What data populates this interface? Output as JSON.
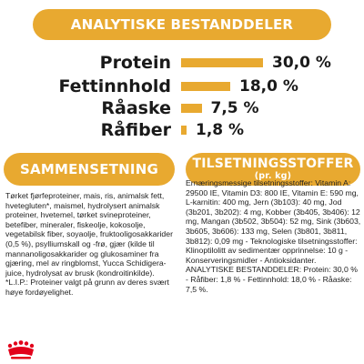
{
  "analytics": {
    "title": "ANALYTISKE BESTANDDELER",
    "rows": [
      {
        "label": "Protein",
        "value": "30,0 %",
        "percent": 30.0
      },
      {
        "label": "Fettinnhold",
        "value": "18,0 %",
        "percent": 18.0
      },
      {
        "label": "Råaske",
        "value": "7,5 %",
        "percent": 7.5
      },
      {
        "label": "Råfiber",
        "value": "1,8 %",
        "percent": 1.8
      }
    ]
  },
  "composition": {
    "title": "SAMMENSETNING",
    "text": "Tørket fjørfeproteiner, mais, ris, animalsk fett, hvetegluten*, maismel, hydrolysert animalsk proteiner, hvetemel, tørket svineproteiner, betefiber, mineraler, fiskeolje, kokosolje, vegetabilsk fiber, soyaolje, fruktooligosakkarider (0,5 %), psylliumskall og -frø, gjær (kilde til mannanoligosakkarider og glukosaminer fra gjæring, mel av ringblomst, Yucca Schidigera-juice, hydrolysat av brusk (kondroitinkilde). *L.I.P.: Proteiner valgt på grunn av deres svært høye fordøyelighet."
  },
  "additives": {
    "title": "TILSETNINGSSTOFFER",
    "subtitle": "(pr. kg)",
    "text": "Ernæringsmessige tilsetningsstoffer: Vitamin A: 29500 IE, Vitamin D3: 800 IE, Vitamin E: 590 mg, L-karnitin: 400 mg, Jern (3b103): 40 mg, Jod (3b201, 3b202): 4 mg, Kobber (3b405, 3b406): 12 mg, Mangan (3b502, 3b504): 52 mg, Sink (3b603, 3b605, 3b606): 133 mg, Selen (3b801, 3b811, 3b812): 0,09 mg - Teknologiske tilsetningsstoffer: Klinoptilolitt av sedimentær opprinnelse: 10 g - Konserveringsmidler - Antioksidanter. ANALYTISKE BESTANDDELER: Protein: 30,0 % - Råfiber: 1,8 % - Fettinnhold: 18,0 % - Råaske: 7,5 %."
  },
  "colors": {
    "accent": "#e8a930",
    "logo": "#e2001a"
  },
  "logo_icon": "royal-crown-icon"
}
